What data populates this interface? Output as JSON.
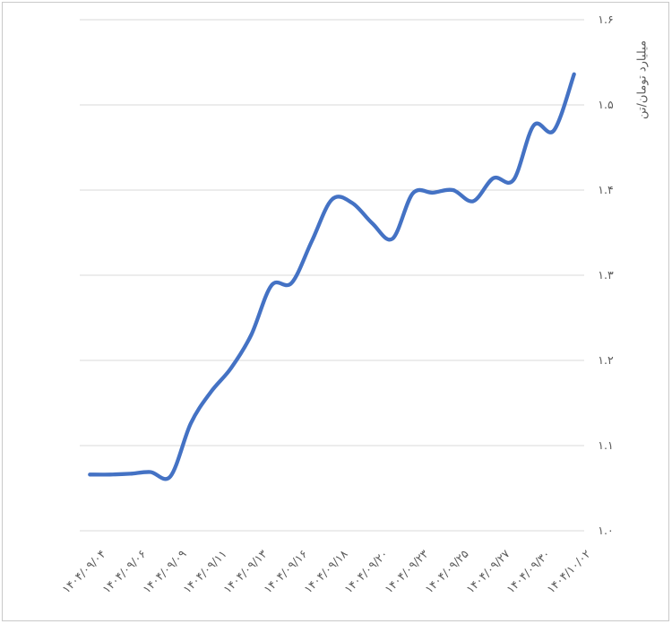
{
  "chart_data": {
    "type": "line",
    "title": "",
    "xlabel": "",
    "ylabel": "میلیارد تومان/تن",
    "ylim": [
      1.0,
      1.6
    ],
    "ytick_step": 0.1,
    "ytick_values": [
      1.6,
      1.5,
      1.4,
      1.3,
      1.2,
      1.1,
      1.0
    ],
    "ytick_labels": [
      "۱.۶",
      "۱.۵",
      "۱.۴",
      "۱.۳",
      "۱.۲",
      "۱.۱",
      "۱.۰"
    ],
    "grid": "horizontal",
    "legend": "none",
    "x_tick_every": 2,
    "x_tick_rotation_deg": -45,
    "x_tick_labels": [
      "۱۴۰۴/۰۹/۰۴",
      "۱۴۰۴/۰۹/۰۶",
      "۱۴۰۴/۰۹/۰۹",
      "۱۴۰۴/۰۹/۱۱",
      "۱۴۰۴/۰۹/۱۳",
      "۱۴۰۴/۰۹/۱۶",
      "۱۴۰۴/۰۹/۱۸",
      "۱۴۰۴/۰۹/۲۰",
      "۱۴۰۴/۰۹/۲۳",
      "۱۴۰۴/۰۹/۲۵",
      "۱۴۰۴/۰۹/۲۷",
      "۱۴۰۴/۰۹/۳۰",
      "۱۴۰۴/۱۰/۰۲"
    ],
    "series": [
      {
        "smooth": true,
        "color": "#4472C4",
        "dates": [
          "۱۴۰۴/۰۹/۰۴",
          "۱۴۰۴/۰۹/۰۵",
          "۱۴۰۴/۰۹/۰۶",
          "۱۴۰۴/۰۹/۰۸",
          "۱۴۰۴/۰۹/۰۹",
          "۱۴۰۴/۰۹/۱۰",
          "۱۴۰۴/۰۹/۱۱",
          "۱۴۰۴/۰۹/۱۲",
          "۱۴۰۴/۰۹/۱۳",
          "۱۴۰۴/۰۹/۱۵",
          "۱۴۰۴/۰۹/۱۶",
          "۱۴۰۴/۰۹/۱۷",
          "۱۴۰۴/۰۹/۱۸",
          "۱۴۰۴/۰۹/۱۹",
          "۱۴۰۴/۰۹/۲۰",
          "۱۴۰۴/۰۹/۲۲",
          "۱۴۰۴/۰۹/۲۳",
          "۱۴۰۴/۰۹/۲۴",
          "۱۴۰۴/۰۹/۲۵",
          "۱۴۰۴/۰۹/۲۶",
          "۱۴۰۴/۰۹/۲۷",
          "۱۴۰۴/۰۹/۲۹",
          "۱۴۰۴/۰۹/۳۰",
          "۱۴۰۴/۱۰/۰۱",
          "۱۴۰۴/۱۰/۰۲"
        ],
        "values": [
          1.066,
          1.066,
          1.067,
          1.069,
          1.064,
          1.126,
          1.163,
          1.191,
          1.23,
          1.288,
          1.291,
          1.34,
          1.389,
          1.385,
          1.361,
          1.343,
          1.396,
          1.397,
          1.4,
          1.387,
          1.414,
          1.412,
          1.476,
          1.47,
          1.536
        ]
      }
    ]
  },
  "style": {
    "background": "#ffffff",
    "frame_border_color": "#c9c9c9",
    "gridline_color": "#d9d9d9",
    "axis_line_color": "#d9d9d9",
    "text_color": "#595959",
    "line_color": "#4472C4",
    "line_width": 4.3
  }
}
